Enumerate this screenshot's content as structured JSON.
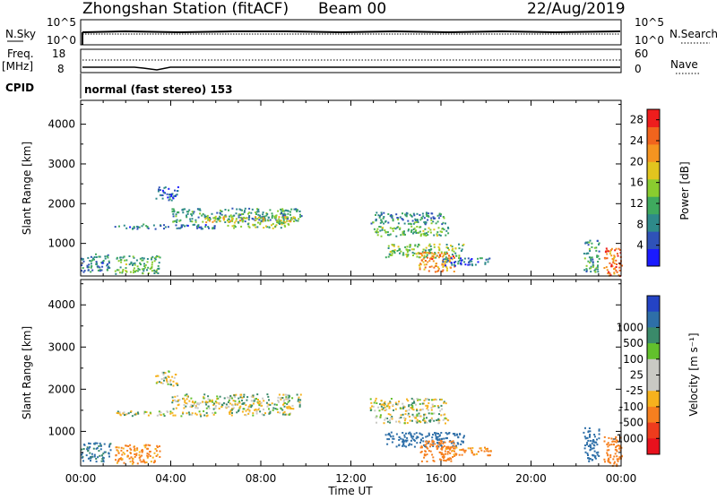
{
  "header": {
    "title": "Zhongshan Station (fitACF)",
    "beam": "Beam 00",
    "date": "22/Aug/2019"
  },
  "top_panels": {
    "nsky_label": "N.Sky",
    "nsearch_label": "N.Search",
    "nsky_ticks": [
      "10^5",
      "10^0"
    ],
    "nsearch_ticks": [
      "10^5",
      "10^0"
    ],
    "freq_label": "Freq.",
    "freq_unit": "[MHz]",
    "freq_ticks": [
      "18",
      "8"
    ],
    "nave_label": "Nave",
    "nave_ticks": [
      "60",
      "0"
    ],
    "cpid_label": "CPID",
    "cpid_text": "normal (fast stereo) 153"
  },
  "colors": {
    "power_scale": [
      "#1a1aff",
      "#2f52b8",
      "#2e8a8a",
      "#3fa95e",
      "#8acc2f",
      "#e2c51e",
      "#f59420",
      "#f1641d",
      "#ee1d1d"
    ],
    "velocity_scale": [
      "#2443c4",
      "#2e6fa8",
      "#3a8a6a",
      "#62c02c",
      "#c9c9c4",
      "#c9c9c4",
      "#f6b21d",
      "#f67f1f",
      "#ee3c1d",
      "#e8111d"
    ]
  },
  "chart_data": [
    {
      "type": "heatmap",
      "name": "power",
      "ylabel": "Slant Range [km]",
      "yticks": [
        1000,
        2000,
        3000,
        4000
      ],
      "ylim": [
        180,
        4600
      ],
      "xlim": [
        0,
        24
      ],
      "colorbar_label": "Power [dB]",
      "colorbar_ticks": [
        "4",
        "8",
        "12",
        "16",
        "20",
        "24",
        "28"
      ],
      "clim": [
        0,
        30
      ],
      "regions": [
        {
          "t0": 0.0,
          "t1": 1.3,
          "r0": 300,
          "r1": 750,
          "value": 8
        },
        {
          "t0": 1.5,
          "t1": 3.5,
          "r0": 250,
          "r1": 700,
          "value": 12
        },
        {
          "t0": 3.3,
          "t1": 4.3,
          "r0": 2100,
          "r1": 2450,
          "value": 6
        },
        {
          "t0": 4.0,
          "t1": 9.8,
          "r0": 1550,
          "r1": 1900,
          "value": 10
        },
        {
          "t0": 5.5,
          "t1": 9.5,
          "r0": 1550,
          "r1": 1700,
          "value": 18
        },
        {
          "t0": 1.5,
          "t1": 6.0,
          "r0": 1380,
          "r1": 1500,
          "value": 7
        },
        {
          "t0": 6.5,
          "t1": 9.3,
          "r0": 1400,
          "r1": 1550,
          "value": 14
        },
        {
          "t0": 12.8,
          "t1": 16.2,
          "r0": 1500,
          "r1": 1800,
          "value": 9
        },
        {
          "t0": 13.0,
          "t1": 16.3,
          "r0": 1200,
          "r1": 1450,
          "value": 12
        },
        {
          "t0": 13.5,
          "t1": 17.0,
          "r0": 650,
          "r1": 1000,
          "value": 14
        },
        {
          "t0": 15.0,
          "t1": 16.6,
          "r0": 300,
          "r1": 800,
          "value": 22
        },
        {
          "t0": 16.0,
          "t1": 18.2,
          "r0": 450,
          "r1": 650,
          "value": 6
        },
        {
          "t0": 22.3,
          "t1": 23.0,
          "r0": 300,
          "r1": 1100,
          "value": 10
        },
        {
          "t0": 23.2,
          "t1": 24.0,
          "r0": 200,
          "r1": 900,
          "value": 24
        }
      ]
    },
    {
      "type": "heatmap",
      "name": "velocity",
      "ylabel": "Slant Range [km]",
      "yticks": [
        1000,
        2000,
        3000,
        4000
      ],
      "ylim": [
        180,
        4600
      ],
      "xlim": [
        0,
        24
      ],
      "xlabel": "Time UT",
      "xticks": [
        "00:00",
        "04:00",
        "08:00",
        "12:00",
        "16:00",
        "20:00",
        "00:00"
      ],
      "colorbar_label": "Velocity [m s⁻¹]",
      "colorbar_ticks": [
        "-1000",
        "-500",
        "-100",
        "-25",
        "25",
        "100",
        "500",
        "1000"
      ],
      "clim": [
        -1000,
        1000
      ],
      "regions": [
        {
          "t0": 0.0,
          "t1": 1.3,
          "r0": 300,
          "r1": 750,
          "value": 150
        },
        {
          "t0": 1.5,
          "t1": 3.5,
          "r0": 250,
          "r1": 700,
          "value": -150
        },
        {
          "t0": 3.3,
          "t1": 4.3,
          "r0": 2100,
          "r1": 2450,
          "value": 0
        },
        {
          "t0": 4.0,
          "t1": 9.8,
          "r0": 1550,
          "r1": 1900,
          "value": 0
        },
        {
          "t0": 1.5,
          "t1": 6.0,
          "r0": 1380,
          "r1": 1500,
          "value": 0
        },
        {
          "t0": 6.5,
          "t1": 9.3,
          "r0": 1400,
          "r1": 1550,
          "value": 0
        },
        {
          "t0": 12.8,
          "t1": 16.2,
          "r0": 1500,
          "r1": 1800,
          "value": 0
        },
        {
          "t0": 13.0,
          "t1": 16.3,
          "r0": 1200,
          "r1": 1450,
          "value": 0
        },
        {
          "t0": 13.5,
          "t1": 17.0,
          "r0": 650,
          "r1": 1000,
          "value": 300
        },
        {
          "t0": 15.0,
          "t1": 16.6,
          "r0": 300,
          "r1": 800,
          "value": -300
        },
        {
          "t0": 16.0,
          "t1": 18.2,
          "r0": 450,
          "r1": 650,
          "value": -150
        },
        {
          "t0": 22.3,
          "t1": 23.0,
          "r0": 300,
          "r1": 1100,
          "value": 200
        },
        {
          "t0": 23.2,
          "t1": 24.0,
          "r0": 200,
          "r1": 900,
          "value": -400
        }
      ]
    }
  ]
}
